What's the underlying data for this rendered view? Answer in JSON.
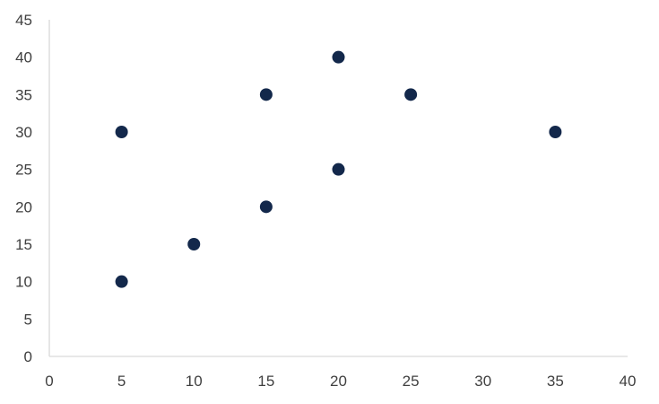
{
  "chart_data": {
    "type": "scatter",
    "title": "",
    "xlabel": "",
    "ylabel": "",
    "xlim": [
      0,
      40
    ],
    "ylim": [
      0,
      45
    ],
    "x_ticks": [
      0,
      5,
      10,
      15,
      20,
      25,
      30,
      35,
      40
    ],
    "y_ticks": [
      0,
      5,
      10,
      15,
      20,
      25,
      30,
      35,
      40,
      45
    ],
    "grid": false,
    "legend": "none",
    "marker_color": "#13284b",
    "axis_color": "#d9d9d9",
    "tick_label_color": "#404040",
    "points": [
      {
        "x": 5,
        "y": 10
      },
      {
        "x": 5,
        "y": 30
      },
      {
        "x": 10,
        "y": 15
      },
      {
        "x": 15,
        "y": 20
      },
      {
        "x": 15,
        "y": 35
      },
      {
        "x": 20,
        "y": 25
      },
      {
        "x": 20,
        "y": 40
      },
      {
        "x": 25,
        "y": 35
      },
      {
        "x": 35,
        "y": 30
      }
    ]
  }
}
